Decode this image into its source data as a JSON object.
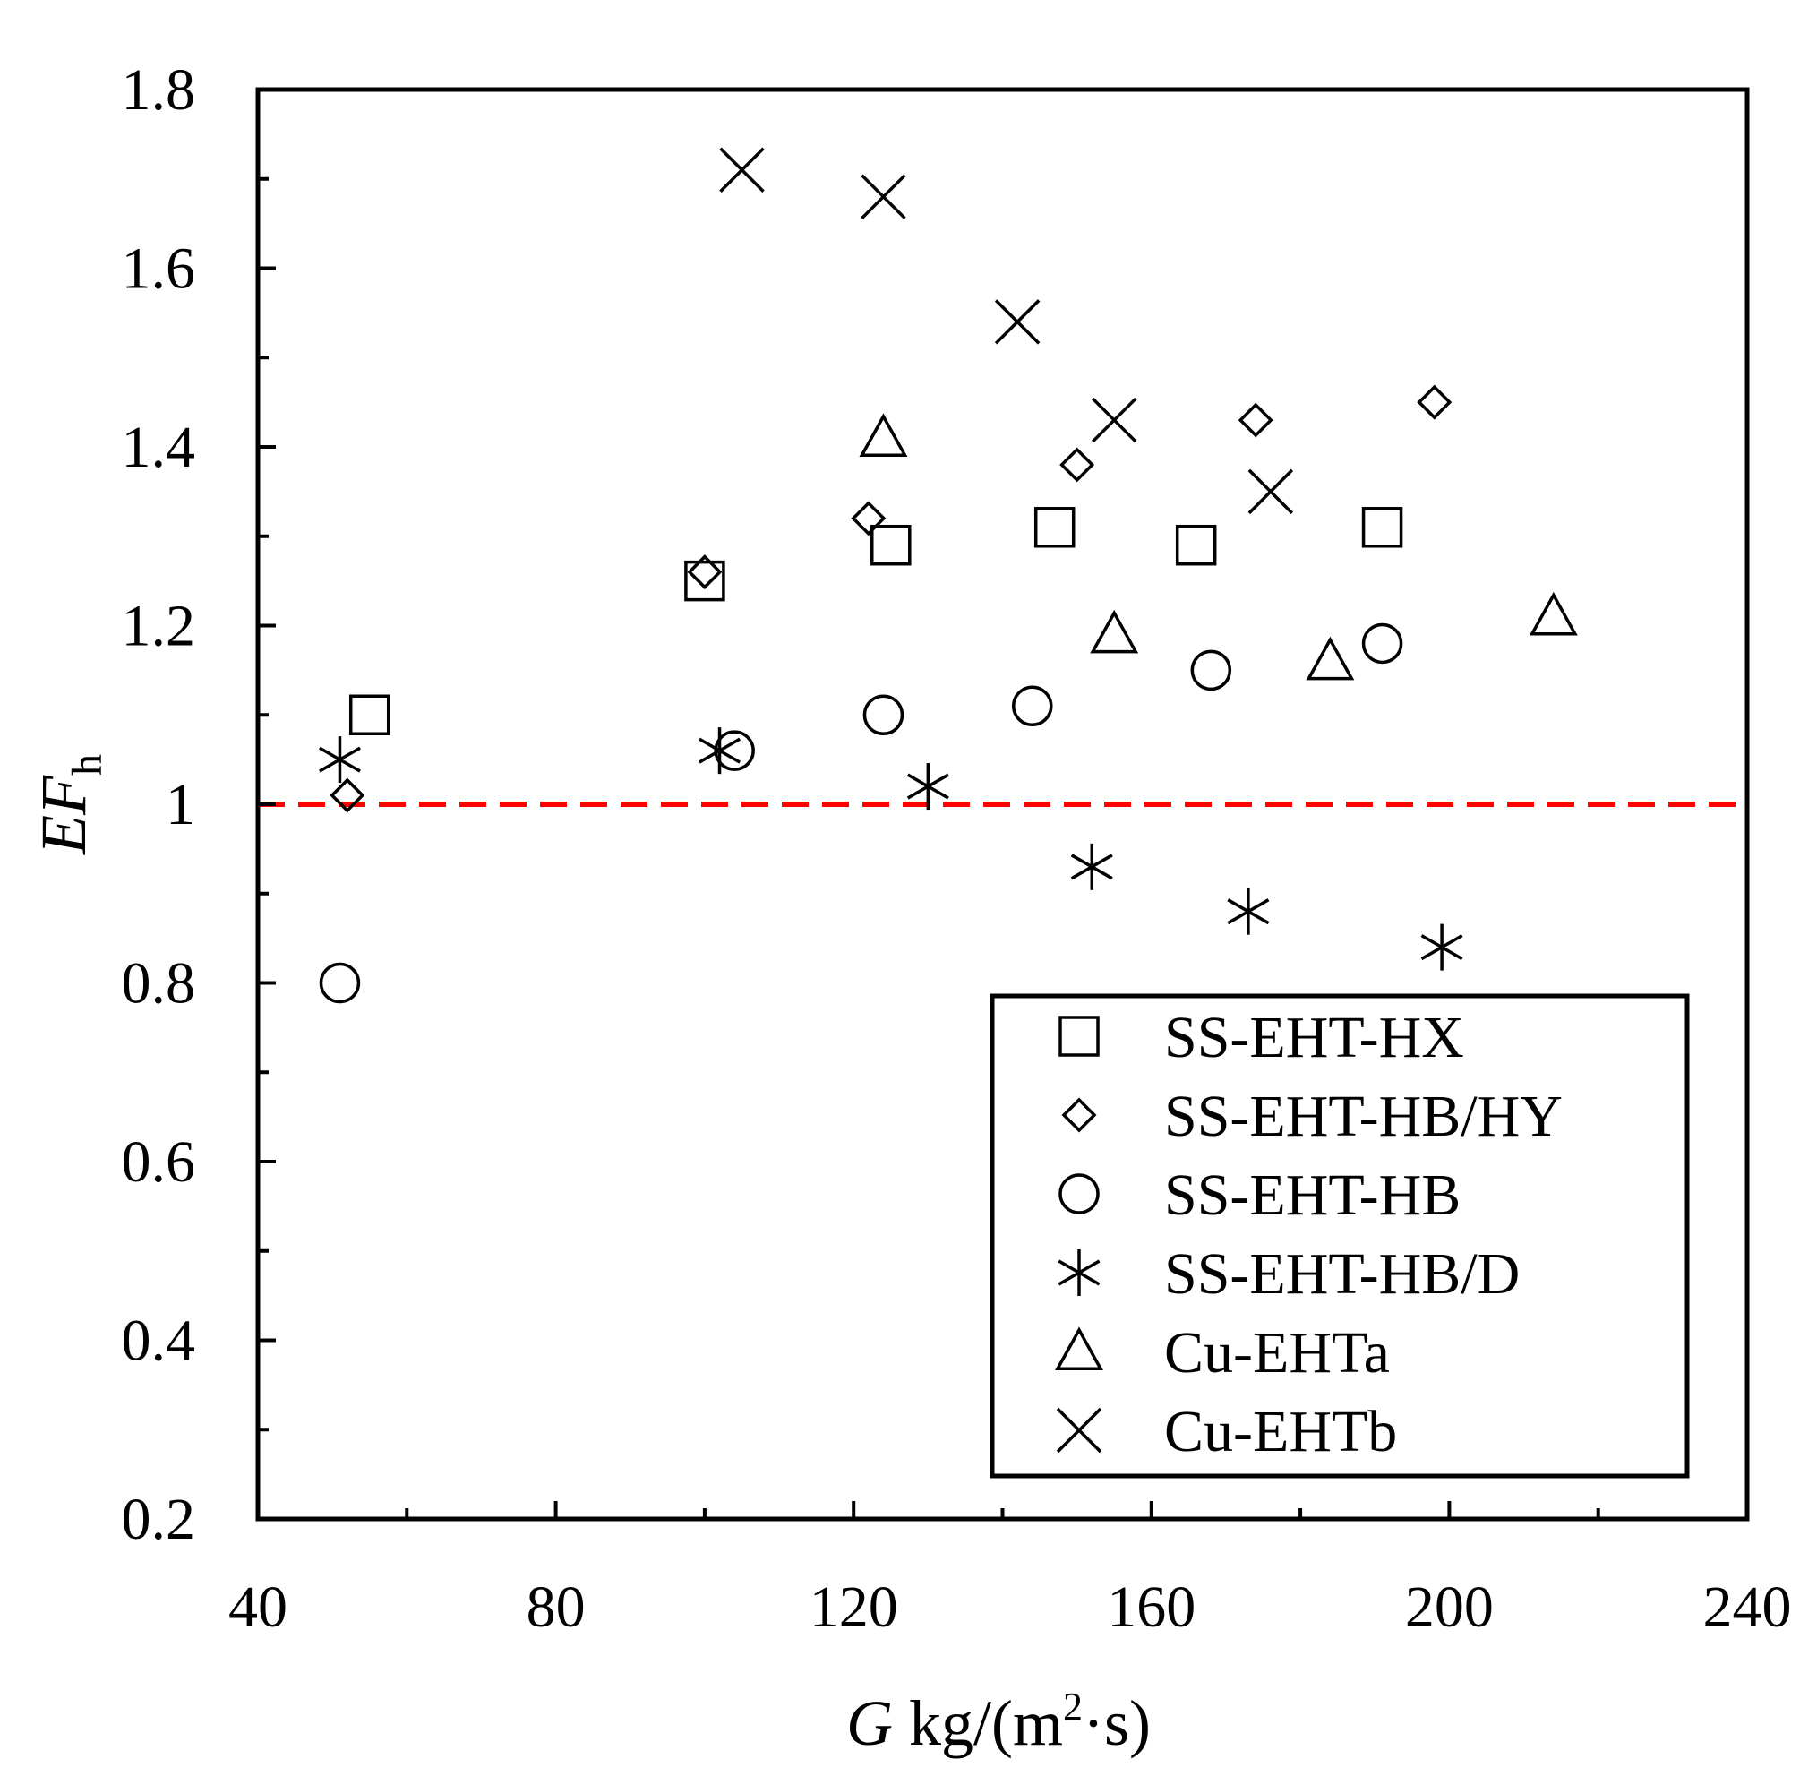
{
  "chart_data": {
    "type": "scatter",
    "title": "",
    "xlabel": {
      "italic": "G",
      "rest": " kg/(m",
      "sup": "2",
      "tail": "·s)"
    },
    "ylabel": {
      "italic": "EF",
      "sub": "h"
    },
    "xlim": [
      40,
      240
    ],
    "ylim": [
      0.2,
      1.8
    ],
    "x_ticks": [
      40,
      80,
      120,
      160,
      200,
      240
    ],
    "x_tick_labels": [
      "40",
      "80",
      "120",
      "160",
      "200",
      "240"
    ],
    "y_ticks": [
      0.2,
      0.4,
      0.6,
      0.8,
      1.0,
      1.2,
      1.4,
      1.6,
      1.8
    ],
    "y_tick_labels": [
      "0.2",
      "0.4",
      "0.6",
      "0.8",
      "1",
      "1.2",
      "1.4",
      "1.6",
      "1.8"
    ],
    "grid": false,
    "legend_position": "bottom-right",
    "reference_line": {
      "y": 1.0,
      "color": "#ff0000",
      "style": "dashed"
    },
    "series": [
      {
        "name": "SS-EHT-HX",
        "marker": "square",
        "points": [
          [
            55,
            1.1
          ],
          [
            100,
            1.25
          ],
          [
            125,
            1.29
          ],
          [
            147,
            1.31
          ],
          [
            166,
            1.29
          ],
          [
            191,
            1.31
          ]
        ]
      },
      {
        "name": "SS-EHT-HB/HY",
        "marker": "diamond",
        "points": [
          [
            52,
            1.01
          ],
          [
            100,
            1.26
          ],
          [
            122,
            1.32
          ],
          [
            150,
            1.38
          ],
          [
            174,
            1.43
          ],
          [
            198,
            1.45
          ]
        ]
      },
      {
        "name": "SS-EHT-HB",
        "marker": "circle",
        "points": [
          [
            51,
            0.8
          ],
          [
            104,
            1.06
          ],
          [
            124,
            1.1
          ],
          [
            144,
            1.11
          ],
          [
            168,
            1.15
          ],
          [
            191,
            1.18
          ]
        ]
      },
      {
        "name": "SS-EHT-HB/D",
        "marker": "asterisk",
        "points": [
          [
            51,
            1.05
          ],
          [
            102,
            1.06
          ],
          [
            130,
            1.02
          ],
          [
            152,
            0.93
          ],
          [
            173,
            0.88
          ],
          [
            199,
            0.84
          ]
        ]
      },
      {
        "name": "Cu-EHTa",
        "marker": "triangle",
        "points": [
          [
            124,
            1.41
          ],
          [
            155,
            1.19
          ],
          [
            184,
            1.16
          ],
          [
            214,
            1.21
          ]
        ]
      },
      {
        "name": "Cu-EHTb",
        "marker": "x",
        "points": [
          [
            105,
            1.71
          ],
          [
            124,
            1.68
          ],
          [
            142,
            1.54
          ],
          [
            155,
            1.43
          ],
          [
            176,
            1.35
          ]
        ]
      }
    ]
  }
}
